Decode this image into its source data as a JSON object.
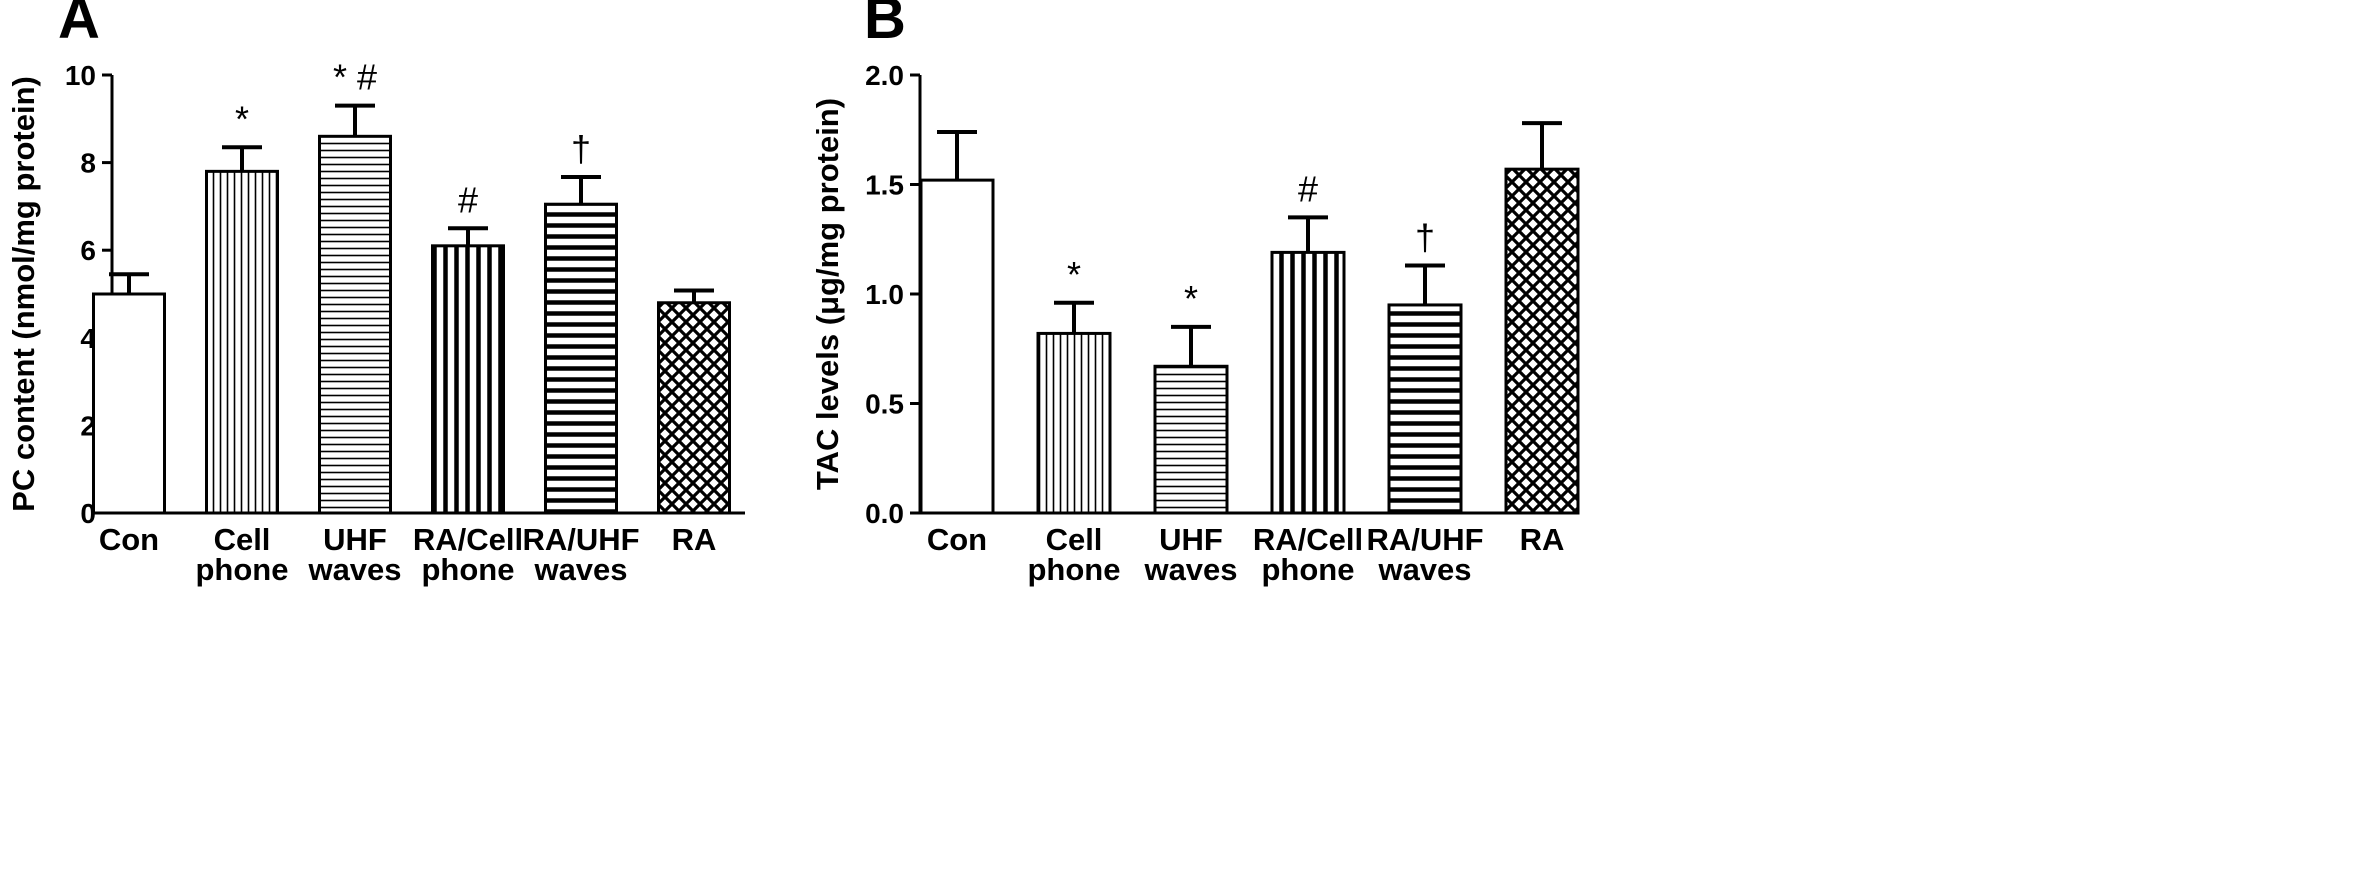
{
  "chart_data": [
    {
      "type": "bar",
      "panel": "A",
      "ylabel": "PC content (nmol/mg protein)",
      "ylim": [
        0,
        10
      ],
      "yticks": [
        "0",
        "2",
        "4",
        "6",
        "8",
        "10"
      ],
      "categories": [
        [
          "Con"
        ],
        [
          "Cell",
          "phone"
        ],
        [
          "UHF",
          "waves"
        ],
        [
          "RA/Cell",
          "phone"
        ],
        [
          "RA/UHF",
          "waves"
        ],
        [
          "RA"
        ]
      ],
      "values": [
        5.0,
        7.8,
        8.6,
        6.1,
        7.05,
        4.8
      ],
      "errors": [
        0.45,
        0.55,
        0.7,
        0.4,
        0.62,
        0.28
      ],
      "significance": [
        "",
        "*",
        "* #",
        "#",
        "†",
        ""
      ],
      "patterns": [
        "open",
        "vertical-fine",
        "horizontal-fine",
        "vertical-thick",
        "horizontal-thick",
        "crosshatch"
      ],
      "grid": false,
      "legend": "none"
    },
    {
      "type": "bar",
      "panel": "B",
      "ylabel": "TAC levels (μg/mg protein)",
      "ylim": [
        0,
        2.0
      ],
      "yticks": [
        "0.0",
        "0.5",
        "1.0",
        "1.5",
        "2.0"
      ],
      "categories": [
        [
          "Con"
        ],
        [
          "Cell",
          "phone"
        ],
        [
          "UHF",
          "waves"
        ],
        [
          "RA/Cell",
          "phone"
        ],
        [
          "RA/UHF",
          "waves"
        ],
        [
          "RA"
        ]
      ],
      "values": [
        1.52,
        0.82,
        0.67,
        1.19,
        0.95,
        1.57
      ],
      "errors": [
        0.22,
        0.14,
        0.18,
        0.16,
        0.18,
        0.21
      ],
      "significance": [
        "",
        "*",
        "*",
        "#",
        "†",
        ""
      ],
      "patterns": [
        "open",
        "vertical-fine",
        "horizontal-fine",
        "vertical-thick",
        "horizontal-thick",
        "crosshatch"
      ],
      "grid": false,
      "legend": "none"
    }
  ]
}
